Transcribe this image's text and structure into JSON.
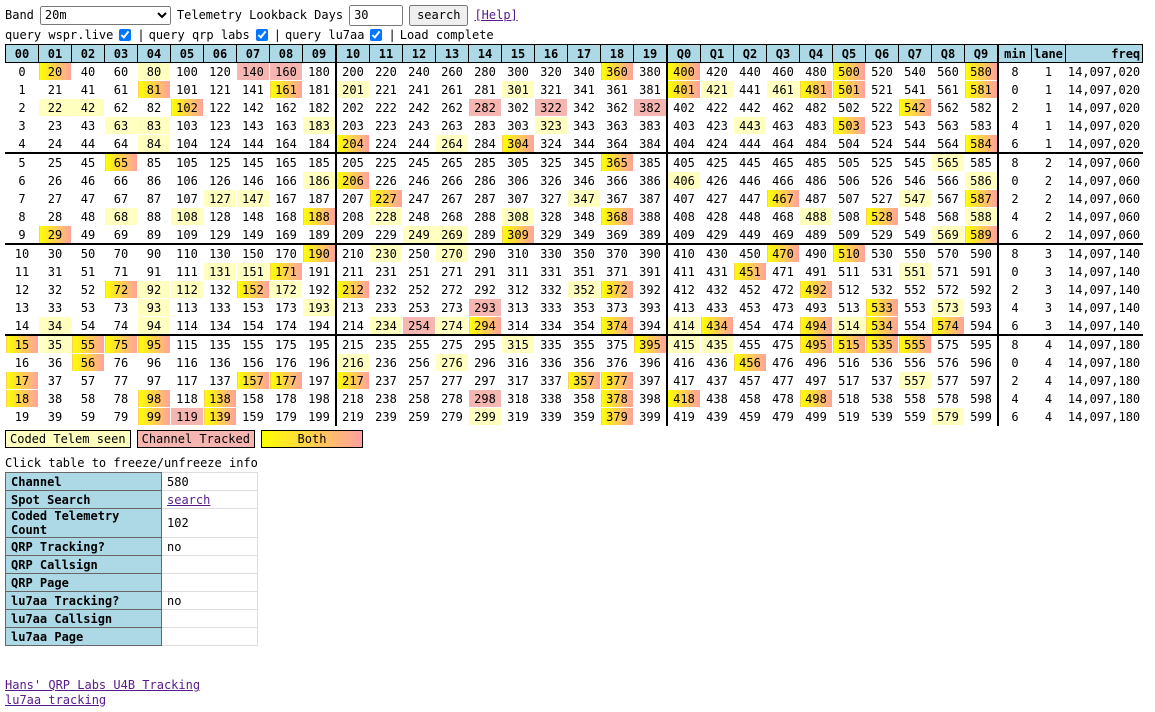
{
  "controls": {
    "band_label": "Band",
    "band_value": "20m",
    "lookback_label": "Telemetry Lookback Days",
    "lookback_value": "30",
    "search_button": "search",
    "help_link": "[Help]"
  },
  "queries": {
    "wspr": "query wspr.live",
    "qrp": "query qrp labs",
    "lu7aa": "query lu7aa",
    "status": "Load complete",
    "sep": "|"
  },
  "headers": [
    "00",
    "01",
    "02",
    "03",
    "04",
    "05",
    "06",
    "07",
    "08",
    "09",
    "10",
    "11",
    "12",
    "13",
    "14",
    "15",
    "16",
    "17",
    "18",
    "19",
    "Q0",
    "Q1",
    "Q2",
    "Q3",
    "Q4",
    "Q5",
    "Q6",
    "Q7",
    "Q8",
    "Q9",
    "min",
    "lane",
    "freq"
  ],
  "rows": [
    {
      "min": "8",
      "lane": "1",
      "freq": "14,097,020"
    },
    {
      "min": "0",
      "lane": "1",
      "freq": "14,097,020"
    },
    {
      "min": "2",
      "lane": "1",
      "freq": "14,097,020"
    },
    {
      "min": "4",
      "lane": "1",
      "freq": "14,097,020"
    },
    {
      "min": "6",
      "lane": "1",
      "freq": "14,097,020"
    },
    {
      "min": "8",
      "lane": "2",
      "freq": "14,097,060"
    },
    {
      "min": "0",
      "lane": "2",
      "freq": "14,097,060"
    },
    {
      "min": "2",
      "lane": "2",
      "freq": "14,097,060"
    },
    {
      "min": "4",
      "lane": "2",
      "freq": "14,097,060"
    },
    {
      "min": "6",
      "lane": "2",
      "freq": "14,097,060"
    },
    {
      "min": "8",
      "lane": "3",
      "freq": "14,097,140"
    },
    {
      "min": "0",
      "lane": "3",
      "freq": "14,097,140"
    },
    {
      "min": "2",
      "lane": "3",
      "freq": "14,097,140"
    },
    {
      "min": "4",
      "lane": "3",
      "freq": "14,097,140"
    },
    {
      "min": "6",
      "lane": "3",
      "freq": "14,097,140"
    },
    {
      "min": "8",
      "lane": "4",
      "freq": "14,097,180"
    },
    {
      "min": "0",
      "lane": "4",
      "freq": "14,097,180"
    },
    {
      "min": "2",
      "lane": "4",
      "freq": "14,097,180"
    },
    {
      "min": "4",
      "lane": "4",
      "freq": "14,097,180"
    },
    {
      "min": "6",
      "lane": "4",
      "freq": "14,097,180"
    }
  ],
  "highlights": {
    "y": [
      20,
      80,
      400,
      500,
      580,
      22,
      102,
      42,
      83,
      183,
      503,
      63,
      323,
      443,
      84,
      264,
      304,
      584,
      65,
      565,
      186,
      206,
      406,
      586,
      127,
      147,
      227,
      347,
      547,
      68,
      108,
      228,
      308,
      368,
      488,
      528,
      588,
      29,
      249,
      269,
      309,
      569,
      589,
      190,
      230,
      270,
      470,
      510,
      131,
      151,
      171,
      201,
      301,
      421,
      461,
      481,
      501,
      551,
      92,
      112,
      152,
      172,
      212,
      352,
      372,
      492,
      93,
      193,
      533,
      573,
      34,
      94,
      234,
      274,
      374,
      414,
      434,
      494,
      514,
      534,
      574,
      15,
      35,
      55,
      75,
      95,
      315,
      395,
      415,
      435,
      495,
      515,
      535,
      555,
      56,
      216,
      276,
      456,
      157,
      177,
      217,
      357,
      377,
      557,
      18,
      138,
      378,
      418,
      498,
      99,
      119,
      139,
      299,
      379,
      579
    ],
    "r": [
      140,
      160,
      282,
      322,
      382,
      254,
      293,
      298,
      119
    ],
    "b": [
      20,
      360,
      400,
      500,
      580,
      81,
      161,
      401,
      481,
      501,
      581,
      102,
      542,
      503,
      204,
      304,
      584,
      65,
      365,
      206,
      227,
      467,
      587,
      188,
      368,
      528,
      29,
      309,
      589,
      190,
      470,
      510,
      171,
      451,
      72,
      152,
      212,
      372,
      492,
      294,
      533,
      374,
      434,
      494,
      534,
      574,
      15,
      55,
      75,
      95,
      395,
      495,
      515,
      535,
      555,
      56,
      456,
      17,
      157,
      177,
      217,
      357,
      377,
      18,
      98,
      138,
      378,
      418,
      498,
      99,
      139,
      379
    ]
  },
  "legend": {
    "coded": "Coded Telem seen",
    "tracked": "Channel Tracked",
    "both": "Both"
  },
  "info": {
    "heading": "Click table to freeze/unfreeze info",
    "rows": [
      {
        "k": "Channel",
        "v": "580"
      },
      {
        "k": "Spot Search",
        "v": "search",
        "link": true
      },
      {
        "k": "Coded Telemetry Count",
        "v": "102"
      },
      {
        "k": "QRP Tracking?",
        "v": "no"
      },
      {
        "k": "QRP Callsign",
        "v": ""
      },
      {
        "k": "QRP Page",
        "v": ""
      },
      {
        "k": "lu7aa Tracking?",
        "v": "no"
      },
      {
        "k": "lu7aa Callsign",
        "v": ""
      },
      {
        "k": "lu7aa Page",
        "v": ""
      }
    ]
  },
  "links": {
    "hans": "Hans' QRP Labs U4B Tracking",
    "lu7aa": "lu7aa tracking"
  }
}
